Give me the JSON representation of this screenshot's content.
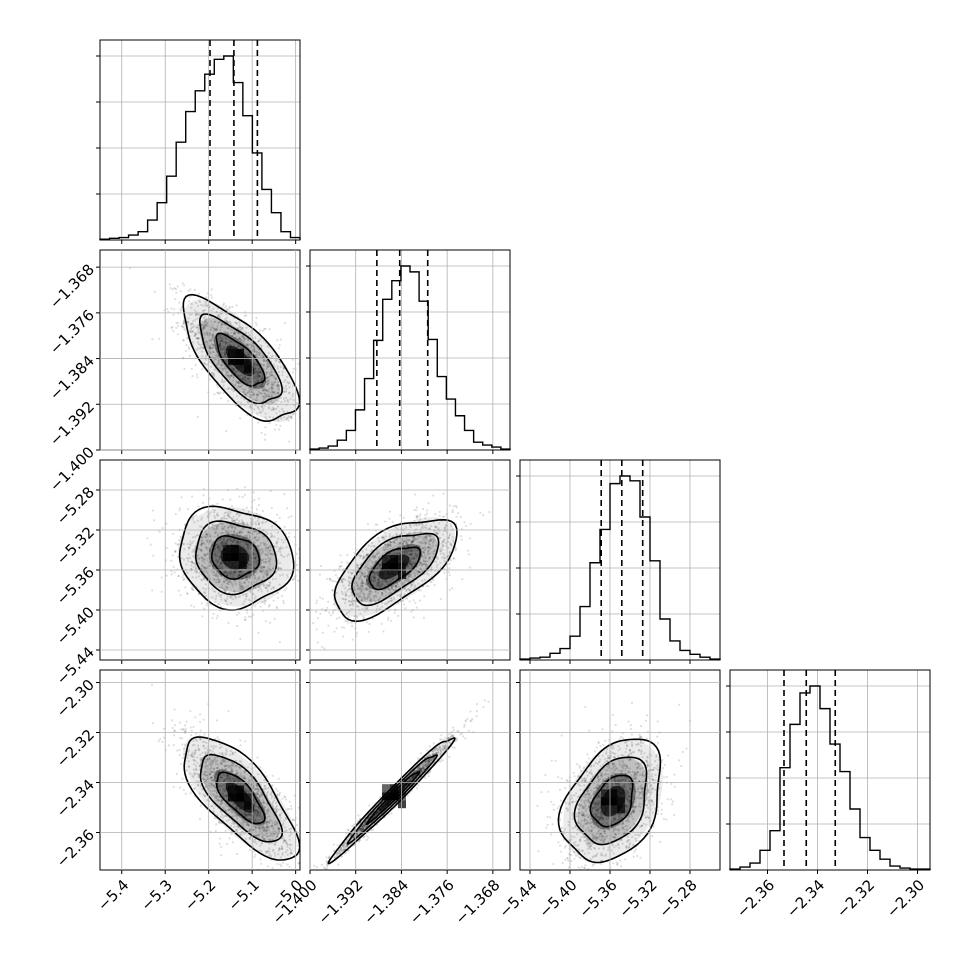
{
  "chart_data": {
    "type": "corner",
    "grid": true,
    "quantile_lines": "dashed",
    "parameters": [
      {
        "range": [
          -5.45,
          -4.99
        ],
        "ticks": [
          -5.4,
          -5.3,
          -5.2,
          -5.1,
          -5.0
        ],
        "tick_labels": [
          "−5.4",
          "−5.3",
          "−5.2",
          "−5.1",
          "−5.0"
        ],
        "quantiles": [
          -5.197,
          -5.142,
          -5.088
        ],
        "hist": [
          1,
          2,
          3,
          6,
          10,
          24,
          45,
          77,
          118,
          155,
          180,
          200,
          218,
          222,
          190,
          150,
          105,
          61,
          33,
          10,
          3
        ]
      },
      {
        "range": [
          -1.4,
          -1.365
        ],
        "ticks": [
          -1.4,
          -1.392,
          -1.384,
          -1.376,
          -1.368
        ],
        "tick_labels": [
          "−1.400",
          "−1.392",
          "−1.384",
          "−1.376",
          "−1.368"
        ],
        "quantiles": [
          -1.3883,
          -1.3843,
          -1.3794
        ],
        "hist": [
          1,
          2,
          4,
          10,
          20,
          41,
          73,
          112,
          154,
          173,
          188,
          182,
          152,
          113,
          75,
          52,
          35,
          20,
          8,
          5,
          3,
          1
        ]
      },
      {
        "range": [
          -5.45,
          -5.25
        ],
        "ticks": [
          -5.44,
          -5.4,
          -5.36,
          -5.32,
          -5.28
        ],
        "tick_labels": [
          "−5.44",
          "−5.40",
          "−5.36",
          "−5.32",
          "−5.28"
        ],
        "quantiles": [
          -5.3688,
          -5.3482,
          -5.3273
        ],
        "hist": [
          1,
          2,
          3,
          7,
          12,
          25,
          56,
          102,
          137,
          185,
          193,
          188,
          150,
          104,
          43,
          20,
          10,
          6,
          3,
          1
        ]
      },
      {
        "range": [
          -2.375,
          -2.295
        ],
        "ticks": [
          -2.36,
          -2.34,
          -2.32,
          -2.3
        ],
        "tick_labels": [
          "−2.36",
          "−2.34",
          "−2.32",
          "−2.30"
        ],
        "quantiles": [
          -2.3534,
          -2.3445,
          -2.3329
        ],
        "hist": [
          1,
          3,
          7,
          20,
          40,
          104,
          148,
          180,
          187,
          164,
          128,
          100,
          62,
          33,
          20,
          11,
          4,
          2,
          1,
          1
        ]
      }
    ],
    "pairs": [
      {
        "row": 1,
        "col": 0,
        "mode": [
          -5.128,
          -1.3844
        ],
        "rho": -0.7,
        "contours": [
          1,
          1.7,
          2.4
        ]
      },
      {
        "row": 2,
        "col": 0,
        "mode": [
          -5.14,
          -5.347
        ],
        "rho": -0.1,
        "contours": [
          1,
          1.7,
          2.4
        ]
      },
      {
        "row": 2,
        "col": 1,
        "mode": [
          -1.3853,
          -5.357
        ],
        "rho": 0.62,
        "contours": [
          1,
          1.7,
          2.4
        ]
      },
      {
        "row": 3,
        "col": 0,
        "mode": [
          -5.128,
          -2.346
        ],
        "rho": -0.72,
        "contours": [
          1,
          1.7,
          2.4
        ]
      },
      {
        "row": 3,
        "col": 1,
        "mode": [
          -1.3853,
          -2.3455
        ],
        "rho": 0.985,
        "contours": [
          1,
          1.7,
          2.4
        ]
      },
      {
        "row": 3,
        "col": 2,
        "mode": [
          -5.357,
          -2.3475
        ],
        "rho": 0.35,
        "contours": [
          1,
          1.7,
          2.4
        ]
      }
    ]
  }
}
